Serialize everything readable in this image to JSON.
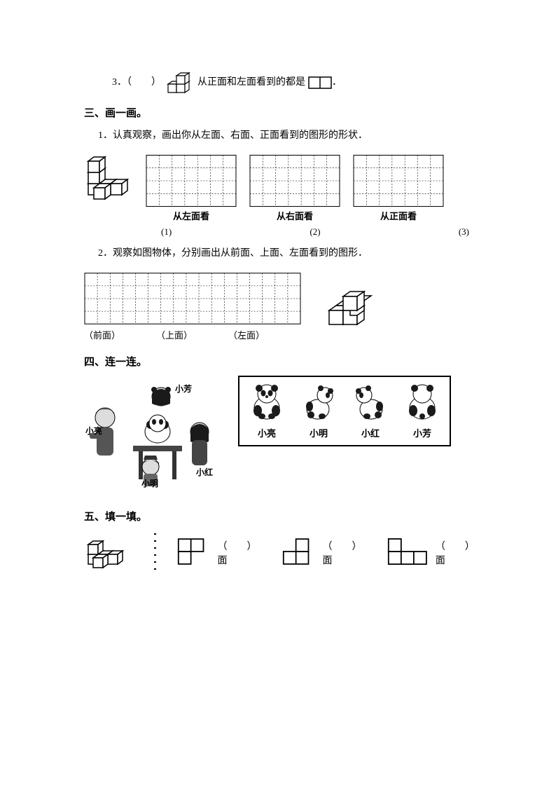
{
  "q3": {
    "prefix": "3．（",
    "gap": "　　",
    "mid": "）",
    "text": " 从正面和左面看到的都是",
    "suffix": "．"
  },
  "section3": {
    "title": "三、画一画。",
    "q1": "1．认真观察，画出你从左面、右面、正面看到的图形的形状．",
    "labels": {
      "left": "从左面看",
      "right": "从右面看",
      "front": "从正面看"
    },
    "subnums": {
      "a": "(1)",
      "b": "(2)",
      "c": "(3)"
    },
    "q2": "2．观察如图物体，分别画出从前面、上面、左面看到的图形．",
    "labels2": {
      "front": "（前面）",
      "top": "（上面）",
      "left": "（左面）"
    },
    "grid1": {
      "cols": 7,
      "rows": 4,
      "cell": 18
    },
    "grid2": {
      "cols": 17,
      "rows": 4,
      "cell": 18
    },
    "styling": {
      "grid_stroke": "#000000",
      "grid_stroke_width": 0.6,
      "dashed": true
    }
  },
  "section4": {
    "title": "四、连一连。",
    "kids": {
      "liang": "小亮",
      "fang": "小芳",
      "ming": "小明",
      "hong": "小红"
    },
    "panda_names": [
      "小亮",
      "小明",
      "小红",
      "小芳"
    ],
    "colors": {
      "border": "#000000",
      "panda_dark": "#1a1a1a",
      "panda_light": "#ffffff"
    }
  },
  "section5": {
    "title": "五、填一填。",
    "slot": {
      "open": "（",
      "close": "）面"
    }
  },
  "cube_style": {
    "stroke": "#000000",
    "fill": "#ffffff",
    "stroke_width": 1.5
  }
}
